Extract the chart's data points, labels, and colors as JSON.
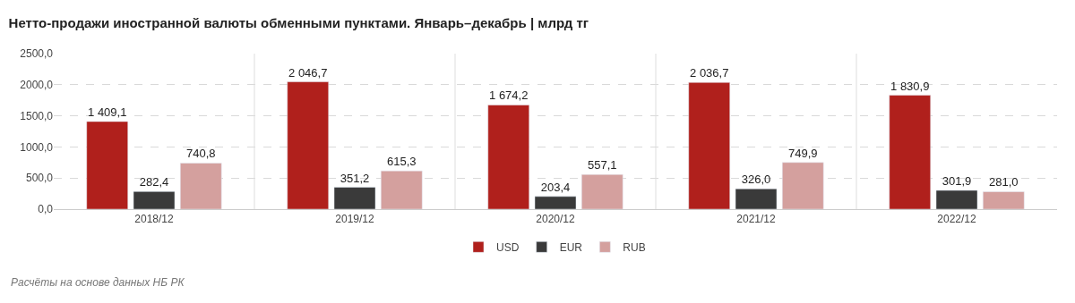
{
  "chart_data": {
    "type": "bar",
    "title": "Нетто-продажи иностранной валюты обменными пунктами. Январь–декабрь | млрд тг",
    "categories": [
      "2018/12",
      "2019/12",
      "2020/12",
      "2021/12",
      "2022/12"
    ],
    "series": [
      {
        "name": "USD",
        "color": "#b0201c",
        "values": [
          1409.1,
          2046.7,
          1674.2,
          2036.7,
          1830.9
        ],
        "value_labels": [
          "1 409,1",
          "2 046,7",
          "1 674,2",
          "2 036,7",
          "1 830,9"
        ]
      },
      {
        "name": "EUR",
        "color": "#3a3a3a",
        "values": [
          282.4,
          351.2,
          203.4,
          326.0,
          301.9
        ],
        "value_labels": [
          "282,4",
          "351,2",
          "203,4",
          "326,0",
          "301,9"
        ]
      },
      {
        "name": "RUB",
        "color": "#d4a09e",
        "values": [
          740.8,
          615.3,
          557.1,
          749.9,
          281.0
        ],
        "value_labels": [
          "740,8",
          "615,3",
          "557,1",
          "749,9",
          "281,0"
        ]
      }
    ],
    "ylim": [
      0,
      2500
    ],
    "yticks": [
      {
        "value": 0,
        "label": "0,0"
      },
      {
        "value": 500,
        "label": "500,0"
      },
      {
        "value": 1000,
        "label": "1000,0"
      },
      {
        "value": 1500,
        "label": "1500,0"
      },
      {
        "value": 2000,
        "label": "2000,0"
      },
      {
        "value": 2500,
        "label": "2500,0"
      }
    ],
    "grid": "y",
    "legend": "bottom",
    "annotations": [
      "Расчёты на основе данных НБ РК"
    ]
  }
}
